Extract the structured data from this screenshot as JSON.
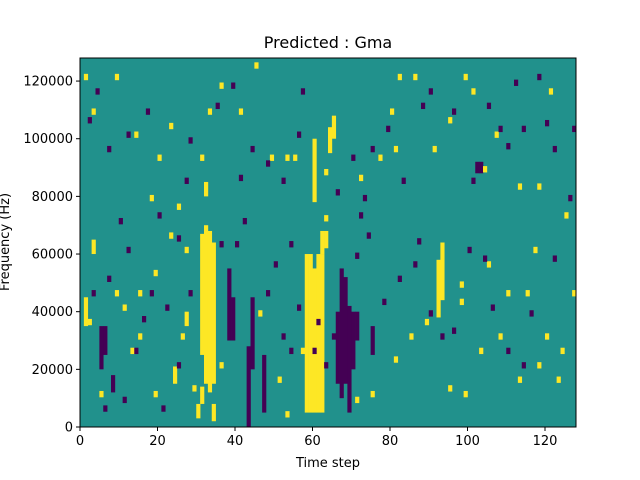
{
  "chart_data": {
    "type": "heatmap",
    "title": "Predicted : Gma",
    "xlabel": "Time step",
    "ylabel": "Frequency (Hz)",
    "xlim": [
      0,
      128
    ],
    "ylim": [
      0,
      128000
    ],
    "x_ticks": [
      0,
      20,
      40,
      60,
      80,
      100,
      120
    ],
    "y_ticks": [
      0,
      20000,
      40000,
      60000,
      80000,
      100000,
      120000
    ],
    "x_tick_labels": [
      "0",
      "20",
      "40",
      "60",
      "80",
      "100",
      "120"
    ],
    "y_tick_labels": [
      "0",
      "20000",
      "40000",
      "60000",
      "80000",
      "100000",
      "120000"
    ],
    "grid": false,
    "colors": {
      "background": "#21918c",
      "high": "#fde725",
      "low": "#440154"
    },
    "high_runs": [
      [
        58,
        5000,
        60000
      ],
      [
        59,
        5000,
        60000
      ],
      [
        60,
        5000,
        55000
      ],
      [
        61,
        5000,
        60000
      ],
      [
        62,
        5000,
        60000
      ],
      [
        31,
        25000,
        67000
      ],
      [
        32,
        15000,
        70000
      ],
      [
        33,
        12000,
        68000
      ],
      [
        34,
        15000,
        64000
      ],
      [
        60,
        78000,
        100000
      ],
      [
        62,
        60000,
        68000
      ],
      [
        63,
        62000,
        68000
      ],
      [
        32,
        80000,
        85000
      ],
      [
        31,
        8000,
        14000
      ],
      [
        30,
        3000,
        8000
      ],
      [
        34,
        2000,
        8000
      ],
      [
        65,
        100000,
        108000
      ],
      [
        64,
        95000,
        104000
      ],
      [
        93,
        44000,
        64000
      ],
      [
        92,
        38000,
        58000
      ],
      [
        1,
        35000,
        45000
      ],
      [
        3,
        60000,
        65000
      ],
      [
        27,
        35000,
        40000
      ],
      [
        24,
        15000,
        21000
      ]
    ],
    "low_runs": [
      [
        67,
        10000,
        55000
      ],
      [
        68,
        15000,
        52000
      ],
      [
        69,
        5000,
        42000
      ],
      [
        70,
        20000,
        40000
      ],
      [
        43,
        0,
        28000
      ],
      [
        44,
        20000,
        45000
      ],
      [
        38,
        30000,
        55000
      ],
      [
        39,
        30000,
        45000
      ],
      [
        5,
        20000,
        35000
      ],
      [
        6,
        25000,
        35000
      ],
      [
        47,
        5000,
        25000
      ],
      [
        102,
        88000,
        92000
      ],
      [
        103,
        88000,
        92000
      ],
      [
        66,
        15000,
        40000
      ],
      [
        71,
        30000,
        40000
      ],
      [
        75,
        25000,
        35000
      ],
      [
        8,
        12000,
        18000
      ]
    ],
    "high_cells": [
      [
        1,
        120000
      ],
      [
        3,
        108000
      ],
      [
        9,
        120000
      ],
      [
        14,
        100000
      ],
      [
        20,
        92000
      ],
      [
        23,
        103000
      ],
      [
        31,
        92000
      ],
      [
        33,
        108000
      ],
      [
        36,
        117000
      ],
      [
        41,
        108000
      ],
      [
        45,
        124000
      ],
      [
        49,
        92000
      ],
      [
        53,
        92000
      ],
      [
        55,
        92000
      ],
      [
        63,
        87000
      ],
      [
        63,
        71000
      ],
      [
        72,
        85000
      ],
      [
        77,
        92000
      ],
      [
        80,
        108000
      ],
      [
        81,
        95000
      ],
      [
        82,
        120000
      ],
      [
        86,
        120000
      ],
      [
        91,
        95000
      ],
      [
        95,
        105000
      ],
      [
        99,
        120000
      ],
      [
        101,
        115000
      ],
      [
        104,
        88000
      ],
      [
        107,
        100000
      ],
      [
        113,
        82000
      ],
      [
        117,
        60000
      ],
      [
        118,
        82000
      ],
      [
        121,
        115000
      ],
      [
        125,
        72000
      ],
      [
        127,
        45000
      ],
      [
        123,
        15000
      ],
      [
        118,
        20000
      ],
      [
        113,
        15000
      ],
      [
        108,
        30000
      ],
      [
        103,
        25000
      ],
      [
        99,
        10000
      ],
      [
        95,
        12000
      ],
      [
        89,
        35000
      ],
      [
        85,
        30000
      ],
      [
        81,
        22000
      ],
      [
        75,
        10000
      ],
      [
        71,
        8000
      ],
      [
        57,
        25000
      ],
      [
        53,
        3000
      ],
      [
        51,
        15000
      ],
      [
        46,
        38000
      ],
      [
        36,
        20000
      ],
      [
        29,
        12000
      ],
      [
        26,
        30000
      ],
      [
        19,
        10000
      ],
      [
        15,
        30000
      ],
      [
        13,
        25000
      ],
      [
        11,
        40000
      ],
      [
        9,
        45000
      ],
      [
        5,
        10000
      ],
      [
        2,
        35000
      ],
      [
        23,
        65000
      ],
      [
        25,
        75000
      ],
      [
        18,
        78000
      ],
      [
        27,
        60000
      ],
      [
        15,
        45000
      ],
      [
        19,
        52000
      ],
      [
        98,
        42000
      ],
      [
        98,
        48000
      ],
      [
        105,
        55000
      ],
      [
        110,
        45000
      ],
      [
        115,
        45000
      ],
      [
        120,
        30000
      ],
      [
        124,
        25000
      ]
    ],
    "low_cells": [
      [
        4,
        115000
      ],
      [
        2,
        105000
      ],
      [
        7,
        95000
      ],
      [
        12,
        100000
      ],
      [
        17,
        108000
      ],
      [
        20,
        72000
      ],
      [
        25,
        64000
      ],
      [
        27,
        84000
      ],
      [
        28,
        98000
      ],
      [
        35,
        110000
      ],
      [
        39,
        117000
      ],
      [
        41,
        85000
      ],
      [
        44,
        95000
      ],
      [
        48,
        90000
      ],
      [
        52,
        84000
      ],
      [
        54,
        62000
      ],
      [
        57,
        115000
      ],
      [
        56,
        100000
      ],
      [
        66,
        80000
      ],
      [
        70,
        92000
      ],
      [
        73,
        78000
      ],
      [
        75,
        95000
      ],
      [
        79,
        102000
      ],
      [
        83,
        84000
      ],
      [
        87,
        63000
      ],
      [
        88,
        110000
      ],
      [
        90,
        115000
      ],
      [
        96,
        108000
      ],
      [
        101,
        84000
      ],
      [
        105,
        110000
      ],
      [
        108,
        102000
      ],
      [
        110,
        96000
      ],
      [
        112,
        118000
      ],
      [
        114,
        102000
      ],
      [
        118,
        120000
      ],
      [
        120,
        104000
      ],
      [
        122,
        95000
      ],
      [
        126,
        78000
      ],
      [
        127,
        102000
      ],
      [
        122,
        57000
      ],
      [
        116,
        38000
      ],
      [
        114,
        20000
      ],
      [
        110,
        25000
      ],
      [
        106,
        40000
      ],
      [
        104,
        57000
      ],
      [
        100,
        60000
      ],
      [
        96,
        32000
      ],
      [
        93,
        30000
      ],
      [
        90,
        38000
      ],
      [
        86,
        55000
      ],
      [
        82,
        50000
      ],
      [
        78,
        42000
      ],
      [
        74,
        65000
      ],
      [
        71,
        58000
      ],
      [
        72,
        72000
      ],
      [
        56,
        40000
      ],
      [
        54,
        25000
      ],
      [
        52,
        30000
      ],
      [
        50,
        55000
      ],
      [
        48,
        45000
      ],
      [
        42,
        70000
      ],
      [
        40,
        62000
      ],
      [
        36,
        62000
      ],
      [
        28,
        45000
      ],
      [
        22,
        40000
      ],
      [
        18,
        45000
      ],
      [
        16,
        36000
      ],
      [
        14,
        25000
      ],
      [
        12,
        60000
      ],
      [
        10,
        70000
      ],
      [
        7,
        50000
      ],
      [
        3,
        45000
      ],
      [
        6,
        5000
      ],
      [
        11,
        8000
      ],
      [
        21,
        5000
      ],
      [
        25,
        20000
      ],
      [
        60,
        25000
      ],
      [
        61,
        35000
      ],
      [
        65,
        30000
      ],
      [
        63,
        20000
      ]
    ]
  }
}
